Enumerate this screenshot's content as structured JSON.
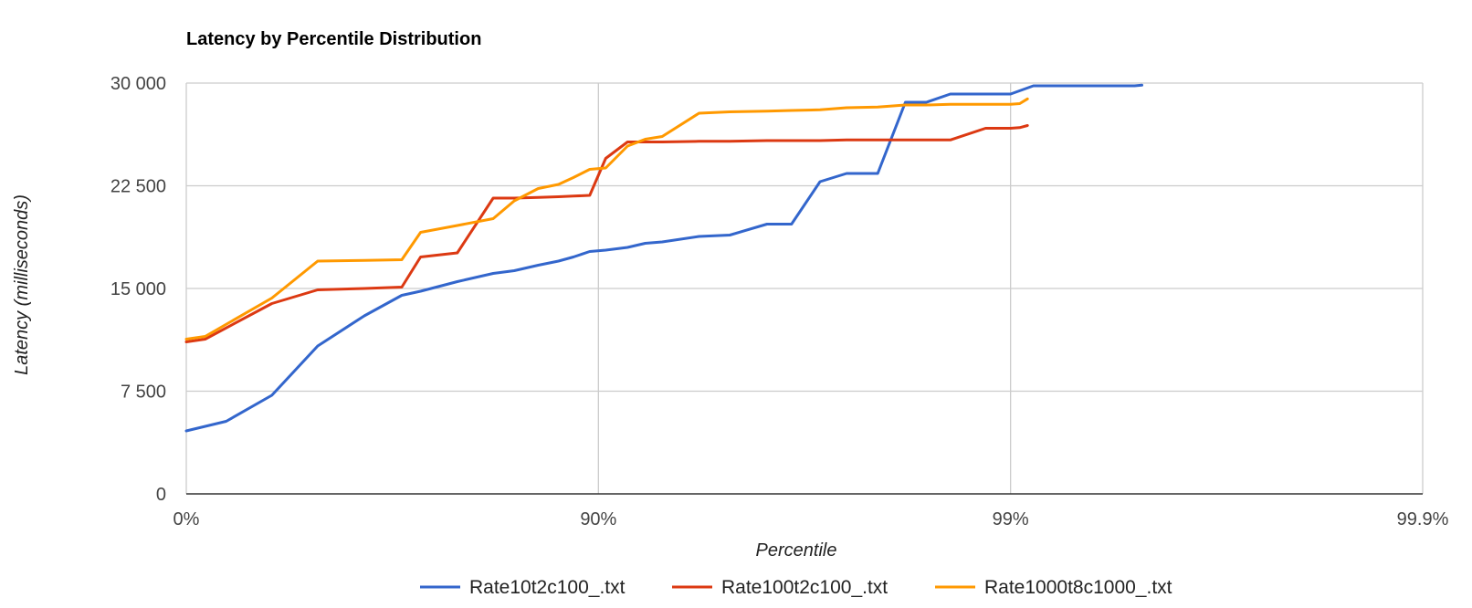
{
  "chart_data": {
    "type": "line",
    "title": "Latency by Percentile Distribution",
    "xlabel": "Percentile",
    "ylabel": "Latency (milliseconds)",
    "x_scale": "inverse-percentile-log",
    "x_ticks": [
      "0%",
      "90%",
      "99%",
      "99.9%"
    ],
    "x_tick_values": [
      0,
      90,
      99,
      99.9
    ],
    "y_ticks": [
      "0",
      "7 500",
      "15 000",
      "22 500",
      "30 000"
    ],
    "y_tick_values": [
      0,
      7500,
      15000,
      22500,
      30000
    ],
    "ylim": [
      0,
      30000
    ],
    "grid": true,
    "legend_position": "bottom",
    "series": [
      {
        "name": "Rate10t2c100_.txt",
        "color": "#3366cc",
        "points": [
          [
            0,
            4600
          ],
          [
            20,
            5300
          ],
          [
            38,
            7200
          ],
          [
            52,
            10800
          ],
          [
            63,
            13000
          ],
          [
            70,
            14500
          ],
          [
            73,
            14800
          ],
          [
            78,
            15500
          ],
          [
            82,
            16100
          ],
          [
            84,
            16300
          ],
          [
            86,
            16700
          ],
          [
            87.5,
            17000
          ],
          [
            88.5,
            17300
          ],
          [
            89.5,
            17700
          ],
          [
            90.4,
            17800
          ],
          [
            91.5,
            18000
          ],
          [
            92.3,
            18300
          ],
          [
            93,
            18400
          ],
          [
            94.3,
            18800
          ],
          [
            95.2,
            18900
          ],
          [
            96.1,
            19700
          ],
          [
            96.6,
            19700
          ],
          [
            97.1,
            22800
          ],
          [
            97.5,
            23400
          ],
          [
            97.9,
            23400
          ],
          [
            98.2,
            28600
          ],
          [
            98.4,
            28600
          ],
          [
            98.6,
            29200
          ],
          [
            98.85,
            29200
          ],
          [
            99.0,
            29200
          ],
          [
            99.12,
            29800
          ],
          [
            99.3,
            29800
          ],
          [
            99.42,
            29800
          ],
          [
            99.5,
            29800
          ],
          [
            99.52,
            29850
          ]
        ]
      },
      {
        "name": "Rate100t2c100_.txt",
        "color": "#dc3912",
        "points": [
          [
            0,
            11100
          ],
          [
            10,
            11300
          ],
          [
            38,
            13900
          ],
          [
            52,
            14900
          ],
          [
            63,
            15000
          ],
          [
            70,
            15100
          ],
          [
            73,
            17300
          ],
          [
            78,
            17600
          ],
          [
            82,
            21600
          ],
          [
            84,
            21600
          ],
          [
            86,
            21650
          ],
          [
            87.5,
            21700
          ],
          [
            88.5,
            21750
          ],
          [
            89.5,
            21800
          ],
          [
            90.4,
            24500
          ],
          [
            91.5,
            25700
          ],
          [
            92.3,
            25700
          ],
          [
            93,
            25700
          ],
          [
            94.3,
            25750
          ],
          [
            95.2,
            25750
          ],
          [
            96.1,
            25800
          ],
          [
            96.6,
            25800
          ],
          [
            97.1,
            25800
          ],
          [
            97.5,
            25850
          ],
          [
            97.9,
            25850
          ],
          [
            98.2,
            25850
          ],
          [
            98.4,
            25850
          ],
          [
            98.6,
            25850
          ],
          [
            98.85,
            26700
          ],
          [
            99.0,
            26700
          ],
          [
            99.05,
            26750
          ],
          [
            99.09,
            26900
          ]
        ]
      },
      {
        "name": "Rate1000t8c1000_.txt",
        "color": "#ff9900",
        "points": [
          [
            0,
            11300
          ],
          [
            10,
            11500
          ],
          [
            38,
            14300
          ],
          [
            52,
            17000
          ],
          [
            63,
            17050
          ],
          [
            70,
            17100
          ],
          [
            73,
            19100
          ],
          [
            78,
            19600
          ],
          [
            82,
            20100
          ],
          [
            84,
            21400
          ],
          [
            86,
            22300
          ],
          [
            87.5,
            22600
          ],
          [
            88.5,
            23100
          ],
          [
            89.5,
            23700
          ],
          [
            90.4,
            23800
          ],
          [
            91.5,
            25400
          ],
          [
            92.3,
            25900
          ],
          [
            93,
            26100
          ],
          [
            94.3,
            27800
          ],
          [
            95.2,
            27900
          ],
          [
            96.1,
            27950
          ],
          [
            96.6,
            28000
          ],
          [
            97.1,
            28050
          ],
          [
            97.5,
            28200
          ],
          [
            97.9,
            28250
          ],
          [
            98.2,
            28400
          ],
          [
            98.4,
            28400
          ],
          [
            98.6,
            28450
          ],
          [
            98.85,
            28450
          ],
          [
            99.0,
            28450
          ],
          [
            99.05,
            28500
          ],
          [
            99.09,
            28850
          ]
        ]
      }
    ]
  }
}
